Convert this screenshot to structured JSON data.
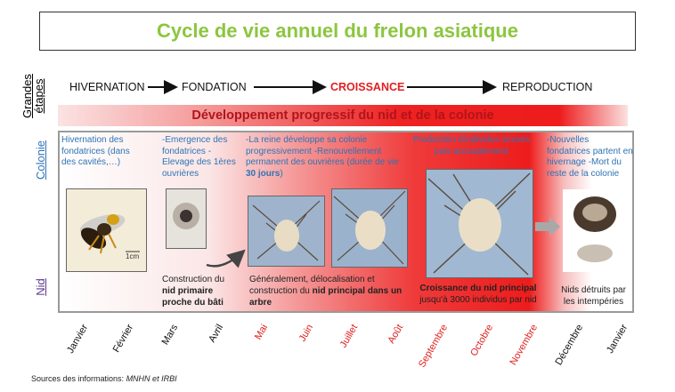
{
  "title": "Cycle de vie annuel du frelon asiatique",
  "labels": {
    "grandes_etapes": "Grandes étapes",
    "colonie": "Colonie",
    "nid": "Nid"
  },
  "stages": [
    {
      "label": "HIVERNATION",
      "color": "#111111"
    },
    {
      "label": "FONDATION",
      "color": "#111111"
    },
    {
      "label": "CROISSANCE",
      "color": "#e02020"
    },
    {
      "label": "REPRODUCTION",
      "color": "#111111"
    }
  ],
  "development_banner": "Développement progressif du nid et de la colonie",
  "colony": [
    {
      "text": "Hivernation des fondatrices (dans des cavités,…)"
    },
    {
      "text": "-Emergence des fondatrices -Elevage des 1ères ouvrières"
    },
    {
      "text_a": "-La reine développe sa colonie progressivement -Renouvellement permanent des ouvrières (durée de vie ",
      "text_b": "30 jours",
      "text_c": ")"
    },
    {
      "text": "Production d'individus sexués puis accouplement"
    },
    {
      "text": "-Nouvelles fondatrices partent en hivernage -Mort du reste de la colonie"
    }
  ],
  "nest": [
    {
      "text_a": "Construction du ",
      "text_b": "nid primaire proche du bâti"
    },
    {
      "text_a": "Généralement, délocalisation et construction du ",
      "text_b": "nid principal dans un arbre"
    },
    {
      "text_a": "Croissance du nid principal",
      "text_b": "jusqu'à 3000 individus par nid"
    },
    {
      "text": "Nids détruits par les intempéries"
    }
  ],
  "scale_label": "1cm",
  "months": [
    {
      "name": "Janvier",
      "color": "#111111"
    },
    {
      "name": "Février",
      "color": "#111111"
    },
    {
      "name": "Mars",
      "color": "#111111"
    },
    {
      "name": "Avril",
      "color": "#111111"
    },
    {
      "name": "Mai",
      "color": "#e02020"
    },
    {
      "name": "Juin",
      "color": "#e02020"
    },
    {
      "name": "Juillet",
      "color": "#e02020"
    },
    {
      "name": "Août",
      "color": "#e02020"
    },
    {
      "name": "Septembre",
      "color": "#e02020"
    },
    {
      "name": "Octobre",
      "color": "#e02020"
    },
    {
      "name": "Novembre",
      "color": "#e02020"
    },
    {
      "name": "Décembre",
      "color": "#111111"
    },
    {
      "name": "Janvier",
      "color": "#111111"
    }
  ],
  "source": {
    "prefix": "Sources des informations: ",
    "refs": "MNHN et IRBI"
  },
  "colors": {
    "title": "#8cc63f",
    "colony_text": "#2e74b5",
    "banner_text": "#b0141a",
    "accent_red": "#e02020"
  }
}
